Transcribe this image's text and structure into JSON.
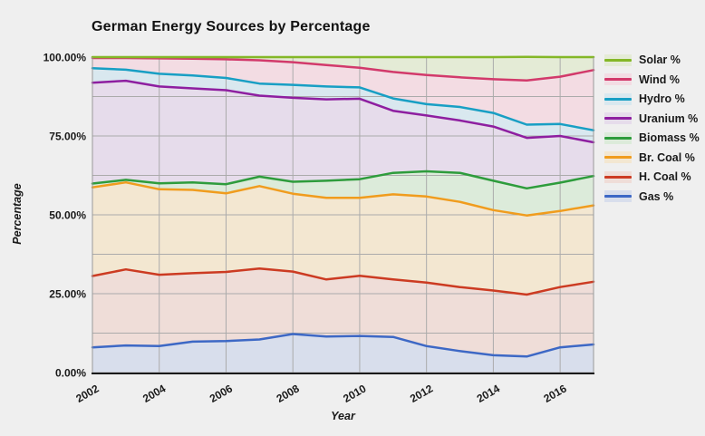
{
  "title": "German Energy Sources by Percentage",
  "axes": {
    "x_label": "Year",
    "y_label": "Percentage",
    "y_ticks": [
      {
        "label": "0.00%",
        "value": 0
      },
      {
        "label": "25.00%",
        "value": 25
      },
      {
        "label": "50.00%",
        "value": 50
      },
      {
        "label": "75.00%",
        "value": 75
      },
      {
        "label": "100.00%",
        "value": 100
      }
    ],
    "x_ticks": [
      {
        "label": "2002",
        "value": 2002
      },
      {
        "label": "2004",
        "value": 2004
      },
      {
        "label": "2006",
        "value": 2006
      },
      {
        "label": "2008",
        "value": 2008
      },
      {
        "label": "2010",
        "value": 2010
      },
      {
        "label": "2012",
        "value": 2012
      },
      {
        "label": "2014",
        "value": 2014
      },
      {
        "label": "2016",
        "value": 2016
      }
    ]
  },
  "colors": {
    "background": "#EFEFEF",
    "grid": "#ABABAB",
    "plot_border": "#9A9A9A",
    "axis_line": "#1A1A1A",
    "text": "#1A1A1A"
  },
  "chart_data": {
    "type": "area",
    "stacked": true,
    "title": "German Energy Sources by Percentage",
    "xlabel": "Year",
    "ylabel": "Percentage",
    "xlim": [
      2002,
      2017
    ],
    "ylim": [
      0,
      100
    ],
    "y_grid_step": 12.5,
    "legend_position": "right",
    "grid": true,
    "x": [
      2002,
      2003,
      2004,
      2005,
      2006,
      2007,
      2008,
      2009,
      2010,
      2011,
      2012,
      2013,
      2014,
      2015,
      2016,
      2017
    ],
    "series_order": "bottom-to-top (stacked); legend shown top-of-stack first",
    "series": [
      {
        "name": "Gas",
        "legend_label": "Gas %",
        "color": "#3D68C5",
        "fill": "#D8DEEC",
        "values": [
          8.0,
          8.6,
          8.4,
          9.8,
          10.0,
          10.5,
          12.2,
          11.4,
          11.6,
          11.3,
          8.4,
          6.8,
          5.5,
          5.1,
          8.0,
          8.9
        ]
      },
      {
        "name": "H. Coal",
        "legend_label": "H. Coal %",
        "color": "#CC3B22",
        "fill": "#EFDDD8",
        "values": [
          22.6,
          24.1,
          22.6,
          21.7,
          21.9,
          22.5,
          19.8,
          18.1,
          19.1,
          18.2,
          20.1,
          20.3,
          20.5,
          19.6,
          19.1,
          19.9
        ]
      },
      {
        "name": "Br. Coal",
        "legend_label": "Br. Coal %",
        "color": "#F09C1E",
        "fill": "#F3E7D1",
        "values": [
          28.1,
          27.6,
          27.1,
          26.4,
          24.9,
          26.1,
          24.7,
          25.9,
          24.7,
          27.0,
          27.3,
          27.0,
          25.5,
          25.1,
          24.1,
          24.2
        ]
      },
      {
        "name": "Biomass",
        "legend_label": "Biomass %",
        "color": "#2E9C3C",
        "fill": "#DCEBDA",
        "values": [
          1.2,
          0.8,
          1.9,
          2.4,
          2.9,
          3.0,
          3.8,
          5.4,
          5.9,
          6.8,
          8.0,
          9.2,
          9.3,
          8.6,
          9.0,
          9.3
        ]
      },
      {
        "name": "Uranium",
        "legend_label": "Uranium %",
        "color": "#8E1FA0",
        "fill": "#E6DCEB",
        "values": [
          32.0,
          31.4,
          30.7,
          29.8,
          29.8,
          25.7,
          26.6,
          25.8,
          25.5,
          19.7,
          17.7,
          16.6,
          17.2,
          16.0,
          14.8,
          10.7
        ]
      },
      {
        "name": "Hydro",
        "legend_label": "Hydro %",
        "color": "#189FC4",
        "fill": "#D9E8EF",
        "values": [
          4.6,
          3.5,
          4.0,
          4.1,
          3.9,
          3.8,
          4.1,
          4.1,
          3.6,
          3.9,
          3.6,
          4.3,
          4.3,
          4.2,
          3.8,
          3.8
        ]
      },
      {
        "name": "Wind",
        "legend_label": "Wind %",
        "color": "#D23A6B",
        "fill": "#F3DCE3",
        "values": [
          3.2,
          3.7,
          4.9,
          5.3,
          5.9,
          7.4,
          7.2,
          6.8,
          6.2,
          8.4,
          9.2,
          9.4,
          10.7,
          14.0,
          15.0,
          19.1
        ]
      },
      {
        "name": "Solar",
        "legend_label": "Solar %",
        "color": "#84B727",
        "fill": "#E4EBD6",
        "values": [
          0.3,
          0.3,
          0.4,
          0.5,
          0.7,
          1.0,
          1.6,
          2.5,
          3.4,
          4.7,
          5.7,
          6.4,
          7.0,
          7.5,
          6.2,
          4.1
        ]
      }
    ]
  }
}
